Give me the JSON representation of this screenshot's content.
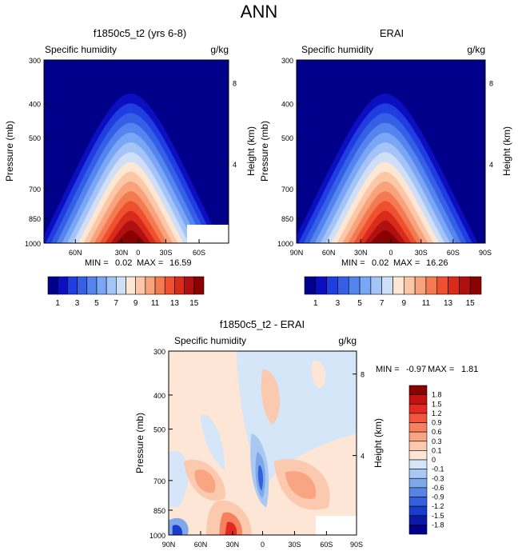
{
  "page_title": "ANN",
  "chart_data": [
    {
      "type": "contour",
      "title": "f1850c5_t2 (yrs 6-8)",
      "left_label": "Specific humidity",
      "units": "g/kg",
      "xlabel": "",
      "ylabel": "Pressure (mb)",
      "y2label": "Height (km)",
      "x_ticks": [
        "60N",
        "30N",
        "0",
        "30S",
        "60S"
      ],
      "y_ticks": [
        "300",
        "400",
        "500",
        "700",
        "850",
        "1000"
      ],
      "y2_ticks": [
        "8",
        "4"
      ],
      "min_label": "MIN =",
      "min": "0.02",
      "max_label": "MAX =",
      "max": "16.59",
      "colorbar": {
        "labels": [
          "1",
          "3",
          "5",
          "7",
          "9",
          "11",
          "13",
          "15"
        ],
        "colors": [
          "#00008b",
          "#0b0fbf",
          "#1f3de0",
          "#3560e6",
          "#5484ee",
          "#79a6f5",
          "#a4c4f8",
          "#cfdff8",
          "#fde6d2",
          "#fbc7a7",
          "#f8a37c",
          "#f47a52",
          "#ee5030",
          "#d92b1a",
          "#b11010",
          "#8b0000"
        ]
      },
      "peak_value": 16.59
    },
    {
      "type": "contour",
      "title": "ERAI",
      "left_label": "Specific humidity",
      "units": "g/kg",
      "xlabel": "",
      "ylabel": "Pressure (mb)",
      "y2label": "Height (km)",
      "x_ticks": [
        "90N",
        "60N",
        "30N",
        "0",
        "30S",
        "60S",
        "90S"
      ],
      "y_ticks": [
        "300",
        "400",
        "500",
        "700",
        "850",
        "1000"
      ],
      "y2_ticks": [
        "8",
        "4"
      ],
      "min_label": "MIN =",
      "min": "0.02",
      "max_label": "MAX =",
      "max": "16.26",
      "colorbar": {
        "labels": [
          "1",
          "3",
          "5",
          "7",
          "9",
          "11",
          "13",
          "15"
        ],
        "colors": [
          "#00008b",
          "#0b0fbf",
          "#1f3de0",
          "#3560e6",
          "#5484ee",
          "#79a6f5",
          "#a4c4f8",
          "#cfdff8",
          "#fde6d2",
          "#fbc7a7",
          "#f8a37c",
          "#f47a52",
          "#ee5030",
          "#d92b1a",
          "#b11010",
          "#8b0000"
        ]
      },
      "peak_value": 16.26
    },
    {
      "type": "contour",
      "title": "f1850c5_t2 - ERAI",
      "left_label": "Specific humidity",
      "units": "g/kg",
      "xlabel": "",
      "ylabel": "Pressure (mb)",
      "y2label": "Height (km)",
      "x_ticks": [
        "90N",
        "60N",
        "30N",
        "0",
        "30S",
        "60S",
        "90S"
      ],
      "y_ticks": [
        "300",
        "400",
        "500",
        "700",
        "850",
        "1000"
      ],
      "y2_ticks": [
        "8",
        "4"
      ],
      "min_label": "MIN =",
      "min": "-0.97",
      "max_label": "MAX =",
      "max": "1.81",
      "colorbar": {
        "labels": [
          "1.8",
          "1.5",
          "1.2",
          "0.9",
          "0.6",
          "0.3",
          "0.1",
          "0",
          "-0.1",
          "-0.3",
          "-0.6",
          "-0.9",
          "-1.2",
          "-1.5",
          "-1.8"
        ],
        "colors": [
          "#8b0000",
          "#c31212",
          "#e22b20",
          "#f2553c",
          "#f7805f",
          "#f9a583",
          "#fbc9ad",
          "#fde6d5",
          "#d4e6f8",
          "#a9c8f2",
          "#7ea8ea",
          "#5584e4",
          "#3360dc",
          "#1a3ccb",
          "#0b1aa6",
          "#00008b"
        ]
      }
    }
  ]
}
